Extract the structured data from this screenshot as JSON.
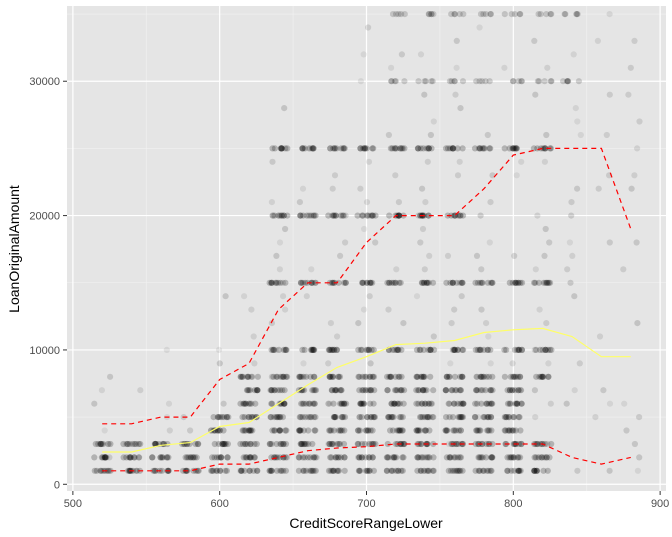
{
  "chart_data": {
    "type": "scatter",
    "xlabel": "CreditScoreRangeLower",
    "ylabel": "LoanOriginalAmount",
    "xlim": [
      496,
      904
    ],
    "ylim": [
      -500,
      35600
    ],
    "x_ticks": [
      500,
      600,
      700,
      800,
      900
    ],
    "y_ticks": [
      0,
      10000,
      20000,
      30000
    ],
    "x_tick_labels": [
      "500",
      "600",
      "700",
      "800",
      "900"
    ],
    "y_tick_labels": [
      "0",
      "10000",
      "20000",
      "30000"
    ],
    "grid": true,
    "background": "#e5e5e5",
    "score_values": [
      520,
      540,
      560,
      580,
      600,
      620,
      640,
      660,
      680,
      700,
      720,
      740,
      760,
      780,
      800,
      820,
      840,
      860,
      880
    ],
    "amount_levels": [
      {
        "amount": 25000,
        "min_score": 640,
        "max_score": 820,
        "dense": true
      },
      {
        "amount": 20000,
        "min_score": 640,
        "max_score": 760,
        "dense": true
      },
      {
        "amount": 15000,
        "min_score": 640,
        "max_score": 820,
        "dense": true
      },
      {
        "amount": 10000,
        "min_score": 640,
        "max_score": 820,
        "dense": true
      },
      {
        "amount": 8000,
        "min_score": 620,
        "max_score": 820,
        "dense": true
      },
      {
        "amount": 7000,
        "min_score": 620,
        "max_score": 800,
        "dense": true
      },
      {
        "amount": 6000,
        "min_score": 620,
        "max_score": 800,
        "dense": true
      },
      {
        "amount": 5000,
        "min_score": 600,
        "max_score": 800,
        "dense": true
      },
      {
        "amount": 4000,
        "min_score": 600,
        "max_score": 800,
        "dense": true
      },
      {
        "amount": 3000,
        "min_score": 520,
        "max_score": 820,
        "dense": true
      },
      {
        "amount": 2000,
        "min_score": 520,
        "max_score": 820,
        "dense": true
      },
      {
        "amount": 1000,
        "min_score": 520,
        "max_score": 820,
        "dense": true
      }
    ],
    "series": [
      {
        "type": "line",
        "style": "solid",
        "color": "#ffff66",
        "x": [
          520,
          540,
          560,
          580,
          600,
          620,
          640,
          660,
          680,
          700,
          720,
          740,
          760,
          780,
          800,
          820,
          840,
          860,
          880
        ],
        "values": [
          2400,
          2400,
          2900,
          3100,
          4300,
          4600,
          6000,
          7400,
          8700,
          9500,
          10400,
          10500,
          10700,
          11300,
          11500,
          11600,
          11000,
          9500,
          9500
        ]
      },
      {
        "type": "line",
        "style": "dashed",
        "color": "#ff0000",
        "x": [
          520,
          540,
          560,
          580,
          600,
          620,
          640,
          660,
          680,
          700,
          720,
          740,
          760,
          780,
          800,
          820,
          840,
          860,
          880
        ],
        "values": [
          4500,
          4500,
          5000,
          5000,
          7800,
          9000,
          13000,
          15000,
          15000,
          18000,
          20000,
          20000,
          20000,
          22000,
          24500,
          25000,
          25000,
          25000,
          19000
        ]
      },
      {
        "type": "line",
        "style": "dashed",
        "color": "#ff0000",
        "x": [
          520,
          540,
          560,
          580,
          600,
          620,
          640,
          660,
          680,
          700,
          720,
          740,
          760,
          780,
          800,
          820,
          840,
          860,
          880
        ],
        "values": [
          1000,
          1000,
          1000,
          1000,
          1500,
          1500,
          2000,
          2500,
          2700,
          2800,
          3000,
          3000,
          3000,
          3000,
          3000,
          3000,
          2000,
          1500,
          2000
        ]
      }
    ]
  }
}
